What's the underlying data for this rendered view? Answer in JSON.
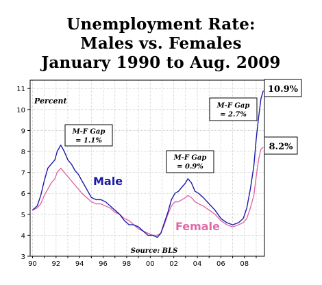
{
  "title_lines": [
    "Unemployment Rate:",
    "Males vs. Females",
    "January 1990 to Aug. 2009"
  ],
  "chart_data": {
    "type": "line",
    "y_axis_label": "Percent",
    "source": "Source: BLS",
    "ylim": [
      3,
      11.4
    ],
    "xlim": [
      1989.8,
      2009.7
    ],
    "y_ticks": [
      3,
      4,
      5,
      6,
      7,
      8,
      9,
      10,
      11
    ],
    "x_tick_labels": [
      "90",
      "92",
      "94",
      "96",
      "98",
      "00",
      "02",
      "04",
      "06",
      "08"
    ],
    "x_tick_years": [
      1990,
      1992,
      1994,
      1996,
      1998,
      2000,
      2002,
      2004,
      2006,
      2008
    ],
    "grid": true,
    "series": [
      {
        "name": "Male",
        "color": "#1a1aa6",
        "points": [
          [
            1990.0,
            5.2
          ],
          [
            1990.4,
            5.4
          ],
          [
            1990.7,
            5.9
          ],
          [
            1991.0,
            6.6
          ],
          [
            1991.3,
            7.2
          ],
          [
            1991.6,
            7.4
          ],
          [
            1991.9,
            7.6
          ],
          [
            1992.1,
            8.0
          ],
          [
            1992.4,
            8.3
          ],
          [
            1992.7,
            8.0
          ],
          [
            1993.0,
            7.6
          ],
          [
            1993.3,
            7.4
          ],
          [
            1993.6,
            7.1
          ],
          [
            1993.9,
            6.9
          ],
          [
            1994.2,
            6.6
          ],
          [
            1994.6,
            6.2
          ],
          [
            1995.0,
            5.8
          ],
          [
            1995.4,
            5.7
          ],
          [
            1995.8,
            5.7
          ],
          [
            1996.2,
            5.6
          ],
          [
            1996.6,
            5.4
          ],
          [
            1997.0,
            5.2
          ],
          [
            1997.4,
            5.0
          ],
          [
            1997.8,
            4.7
          ],
          [
            1998.2,
            4.5
          ],
          [
            1998.6,
            4.5
          ],
          [
            1999.0,
            4.4
          ],
          [
            1999.4,
            4.2
          ],
          [
            1999.8,
            4.0
          ],
          [
            2000.2,
            4.0
          ],
          [
            2000.6,
            3.9
          ],
          [
            2000.9,
            4.1
          ],
          [
            2001.2,
            4.6
          ],
          [
            2001.5,
            5.1
          ],
          [
            2001.8,
            5.7
          ],
          [
            2002.1,
            6.0
          ],
          [
            2002.4,
            6.1
          ],
          [
            2002.7,
            6.3
          ],
          [
            2003.0,
            6.5
          ],
          [
            2003.2,
            6.7
          ],
          [
            2003.5,
            6.5
          ],
          [
            2003.8,
            6.1
          ],
          [
            2004.1,
            6.0
          ],
          [
            2004.5,
            5.8
          ],
          [
            2005.0,
            5.5
          ],
          [
            2005.5,
            5.2
          ],
          [
            2006.0,
            4.8
          ],
          [
            2006.5,
            4.6
          ],
          [
            2007.0,
            4.5
          ],
          [
            2007.5,
            4.6
          ],
          [
            2007.9,
            4.8
          ],
          [
            2008.2,
            5.3
          ],
          [
            2008.5,
            6.2
          ],
          [
            2008.8,
            7.3
          ],
          [
            2009.0,
            8.6
          ],
          [
            2009.2,
            9.6
          ],
          [
            2009.4,
            10.5
          ],
          [
            2009.6,
            10.9
          ]
        ]
      },
      {
        "name": "Female",
        "color": "#e06aa6",
        "points": [
          [
            1990.0,
            5.2
          ],
          [
            1990.4,
            5.3
          ],
          [
            1990.7,
            5.5
          ],
          [
            1991.0,
            5.9
          ],
          [
            1991.3,
            6.2
          ],
          [
            1991.6,
            6.5
          ],
          [
            1991.9,
            6.7
          ],
          [
            1992.1,
            7.0
          ],
          [
            1992.4,
            7.2
          ],
          [
            1992.7,
            7.0
          ],
          [
            1993.0,
            6.8
          ],
          [
            1993.3,
            6.6
          ],
          [
            1993.6,
            6.4
          ],
          [
            1993.9,
            6.2
          ],
          [
            1994.2,
            6.0
          ],
          [
            1994.6,
            5.8
          ],
          [
            1995.0,
            5.6
          ],
          [
            1995.4,
            5.5
          ],
          [
            1995.8,
            5.5
          ],
          [
            1996.2,
            5.4
          ],
          [
            1996.6,
            5.3
          ],
          [
            1997.0,
            5.1
          ],
          [
            1997.4,
            5.0
          ],
          [
            1997.8,
            4.8
          ],
          [
            1998.2,
            4.7
          ],
          [
            1998.6,
            4.5
          ],
          [
            1999.0,
            4.3
          ],
          [
            1999.4,
            4.2
          ],
          [
            1999.8,
            4.1
          ],
          [
            2000.2,
            4.0
          ],
          [
            2000.6,
            4.0
          ],
          [
            2000.9,
            4.1
          ],
          [
            2001.2,
            4.5
          ],
          [
            2001.5,
            5.0
          ],
          [
            2001.8,
            5.4
          ],
          [
            2002.1,
            5.6
          ],
          [
            2002.4,
            5.6
          ],
          [
            2002.7,
            5.7
          ],
          [
            2003.0,
            5.8
          ],
          [
            2003.2,
            5.9
          ],
          [
            2003.5,
            5.8
          ],
          [
            2003.8,
            5.6
          ],
          [
            2004.1,
            5.5
          ],
          [
            2004.5,
            5.4
          ],
          [
            2005.0,
            5.2
          ],
          [
            2005.5,
            5.0
          ],
          [
            2006.0,
            4.7
          ],
          [
            2006.5,
            4.5
          ],
          [
            2007.0,
            4.4
          ],
          [
            2007.5,
            4.5
          ],
          [
            2007.9,
            4.6
          ],
          [
            2008.2,
            4.8
          ],
          [
            2008.5,
            5.3
          ],
          [
            2008.8,
            5.9
          ],
          [
            2009.0,
            6.8
          ],
          [
            2009.2,
            7.6
          ],
          [
            2009.4,
            8.1
          ],
          [
            2009.6,
            8.2
          ]
        ]
      }
    ],
    "annotations": [
      {
        "line1": "M-F Gap",
        "line2": "= 1.1%"
      },
      {
        "line1": "M-F Gap",
        "line2": "= 0.9%"
      },
      {
        "line1": "M-F Gap",
        "line2": "= 2.7%"
      }
    ],
    "end_labels": [
      {
        "series": "Male",
        "text": "10.9%"
      },
      {
        "series": "Female",
        "text": "8.2%"
      }
    ],
    "series_labels": [
      {
        "series": "Male",
        "text": "Male"
      },
      {
        "series": "Female",
        "text": "Female"
      }
    ]
  }
}
